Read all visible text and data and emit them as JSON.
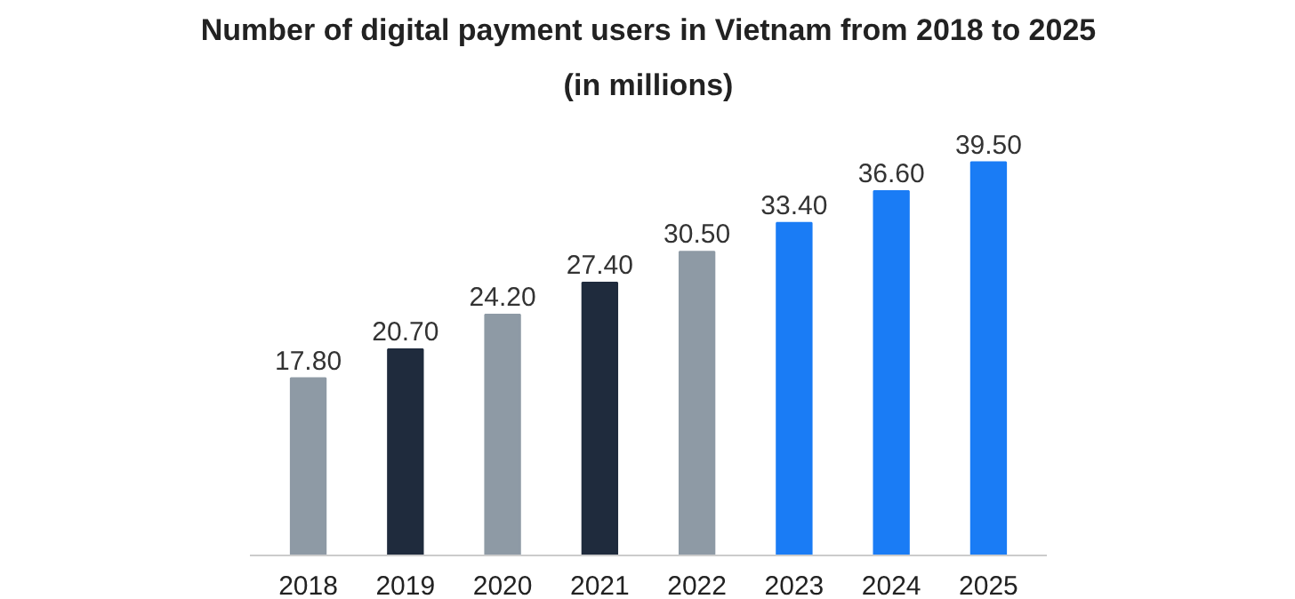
{
  "chart_data": {
    "type": "bar",
    "title": "Number of digital payment users in Vietnam from 2018 to 2025",
    "subtitle": "(in millions)",
    "categories": [
      "2018",
      "2019",
      "2020",
      "2021",
      "2022",
      "2023",
      "2024",
      "2025"
    ],
    "values": [
      17.8,
      20.7,
      24.2,
      27.4,
      30.5,
      33.4,
      36.6,
      39.5
    ],
    "value_labels": [
      "17.80",
      "20.70",
      "24.20",
      "27.40",
      "30.50",
      "33.40",
      "36.60",
      "39.50"
    ],
    "colors": [
      "#8e9aa5",
      "#1f2b3d",
      "#8e9aa5",
      "#1f2b3d",
      "#8e9aa5",
      "#1a7cf5",
      "#1a7cf5",
      "#1a7cf5"
    ],
    "grid": false
  }
}
